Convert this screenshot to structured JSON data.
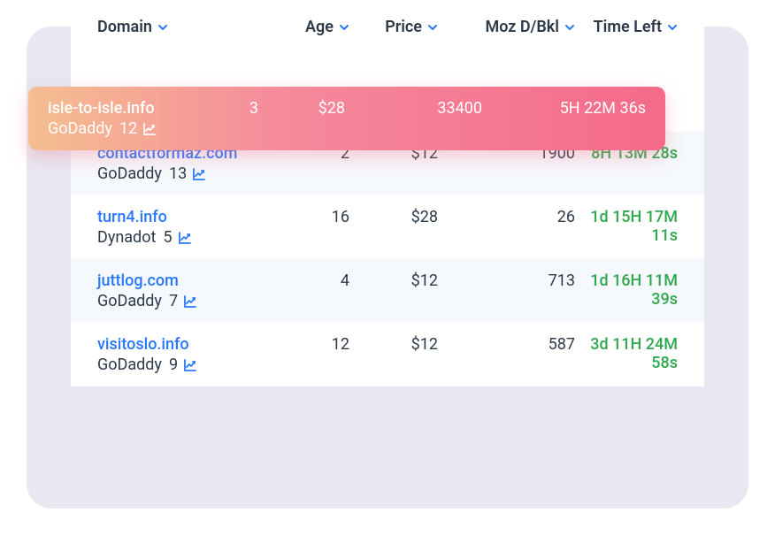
{
  "colors": {
    "shadow_bg": "#cfd2e6",
    "card_bg": "#ffffff",
    "header_text": "#2d3a4a",
    "chevron": "#2978ff",
    "link": "#2978ff",
    "body_text": "#2d3a4a",
    "time_text": "#2fa84f",
    "alt_row_bg": "#f5f8fc",
    "gradient_start": "#f5be8f",
    "gradient_mid": "#f58a9b",
    "gradient_end": "#f56a8a",
    "chart_icon": "#2978ff",
    "chart_icon_highlight": "#ffffff"
  },
  "headers": {
    "domain": "Domain",
    "age": "Age",
    "price": "Price",
    "moz": "Moz D/Bkl",
    "time": "Time Left"
  },
  "highlight": {
    "domain": "isle-to-isle.info",
    "registrar": "GoDaddy",
    "registrar_count": "12",
    "age": "3",
    "price": "$28",
    "moz": "33400",
    "time": "5H 22M 36s"
  },
  "rows": [
    {
      "domain": "contactformaz.com",
      "registrar": "GoDaddy",
      "registrar_count": "13",
      "age": "2",
      "price": "$12",
      "moz": "1900",
      "time": "8H 13M 28s",
      "alt": true
    },
    {
      "domain": "turn4.info",
      "registrar": "Dynadot",
      "registrar_count": "5",
      "age": "16",
      "price": "$28",
      "moz": "26",
      "time": "1d 15H 17M 11s",
      "alt": false
    },
    {
      "domain": "juttlog.com",
      "registrar": "GoDaddy",
      "registrar_count": "7",
      "age": "4",
      "price": "$12",
      "moz": "713",
      "time": "1d 16H 11M 39s",
      "alt": true
    },
    {
      "domain": "visitoslo.info",
      "registrar": "GoDaddy",
      "registrar_count": "9",
      "age": "12",
      "price": "$12",
      "moz": "587",
      "time": "3d 11H 24M 58s",
      "alt": false
    }
  ]
}
